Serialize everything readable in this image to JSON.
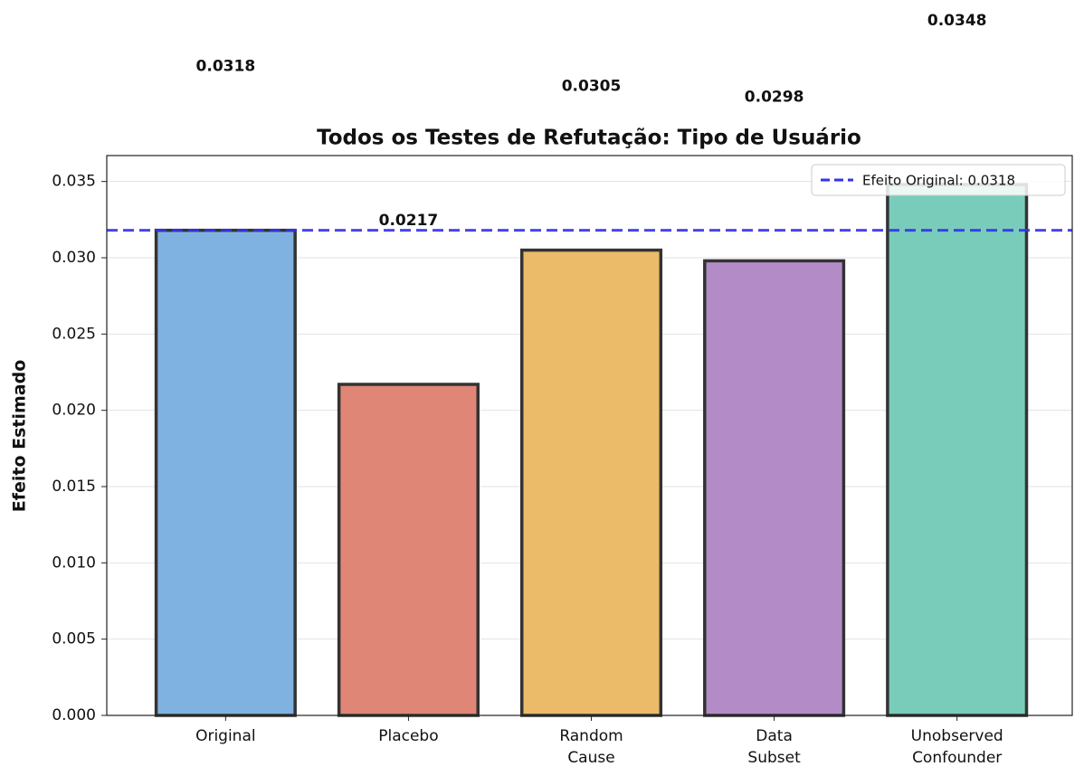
{
  "chart_data": {
    "type": "bar",
    "title": "Todos os Testes de Refutação: Tipo de Usuário",
    "y_label": "Efeito Estimado",
    "categories": [
      "Original",
      "Placebo",
      "Random\nCause",
      "Data\nSubset",
      "Unobserved\nConfounder"
    ],
    "values": [
      0.0318,
      0.0217,
      0.0305,
      0.0298,
      0.0348
    ],
    "colors": [
      "#7fb2e0",
      "#e08677",
      "#ecbb69",
      "#b38cc7",
      "#7accba"
    ],
    "ylim": [
      0,
      0.0367
    ],
    "yticks": [
      {
        "value": 0,
        "label": "0.000"
      },
      {
        "value": 0.005,
        "label": "0.005"
      },
      {
        "value": 0.01,
        "label": "0.010"
      },
      {
        "value": 0.015,
        "label": "0.015"
      },
      {
        "value": 0.02,
        "label": "0.020"
      },
      {
        "value": 0.025,
        "label": "0.025"
      },
      {
        "value": 0.03,
        "label": "0.030"
      },
      {
        "value": 0.035,
        "label": "0.035"
      }
    ],
    "grid": true,
    "reference_line": {
      "value": 0.0318,
      "label": "Efeito Original: 0.0318",
      "color": "#3333ee"
    },
    "legend": "upper right"
  }
}
